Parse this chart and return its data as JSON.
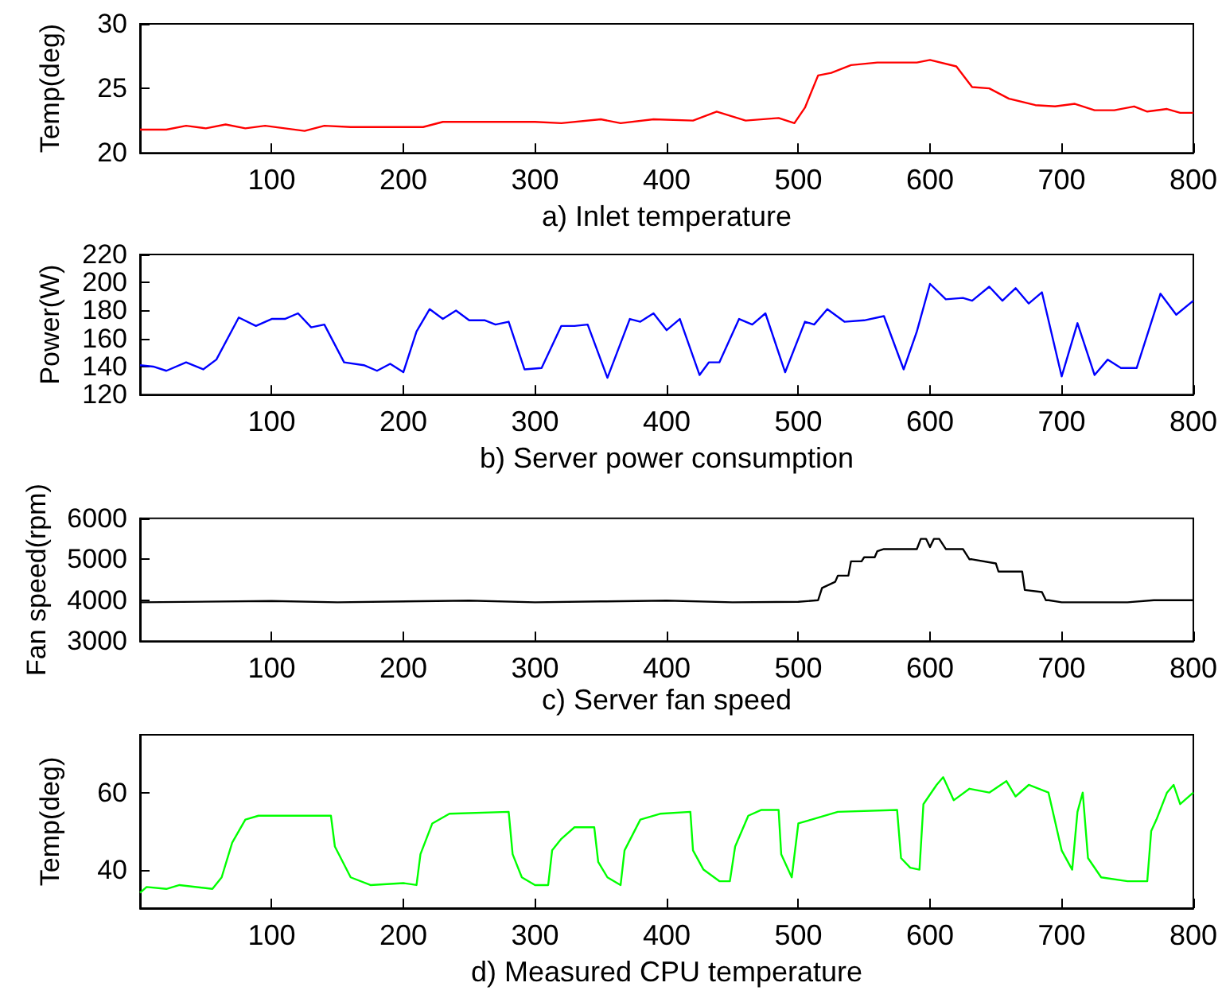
{
  "chart_data": [
    {
      "type": "line",
      "xlabel": "a) Inlet temperature",
      "ylabel": "Temp(deg)",
      "xlim": [
        0,
        800
      ],
      "xticks": [
        100,
        200,
        300,
        400,
        500,
        600,
        700,
        800
      ],
      "ylim": [
        20,
        30
      ],
      "yticks": [
        20,
        25,
        30
      ],
      "grid": false,
      "series": [
        {
          "color": "#ff0000",
          "x": [
            0,
            20,
            35,
            50,
            65,
            80,
            95,
            110,
            125,
            140,
            160,
            215,
            230,
            260,
            300,
            320,
            350,
            365,
            390,
            420,
            438,
            460,
            485,
            497,
            505,
            515,
            525,
            540,
            560,
            590,
            600,
            620,
            632,
            645,
            660,
            680,
            695,
            710,
            725,
            740,
            755,
            765,
            780,
            790,
            800
          ],
          "values": [
            21.8,
            21.8,
            22.1,
            21.9,
            22.2,
            21.9,
            22.1,
            21.9,
            21.7,
            22.1,
            22.0,
            22.0,
            22.4,
            22.4,
            22.4,
            22.3,
            22.6,
            22.3,
            22.6,
            22.5,
            23.2,
            22.5,
            22.7,
            22.3,
            23.5,
            26.0,
            26.2,
            26.8,
            27.0,
            27.0,
            27.2,
            26.7,
            25.1,
            25.0,
            24.2,
            23.7,
            23.6,
            23.8,
            23.3,
            23.3,
            23.6,
            23.2,
            23.4,
            23.1,
            23.1
          ]
        }
      ]
    },
    {
      "type": "line",
      "xlabel": "b) Server power consumption",
      "ylabel": "Power(W)",
      "xlim": [
        0,
        800
      ],
      "xticks": [
        100,
        200,
        300,
        400,
        500,
        600,
        700,
        800
      ],
      "ylim": [
        120,
        220
      ],
      "yticks": [
        120,
        140,
        160,
        180,
        200,
        220
      ],
      "grid": false,
      "series": [
        {
          "color": "#0000ff",
          "x": [
            0,
            10,
            20,
            35,
            48,
            58,
            75,
            88,
            100,
            110,
            120,
            130,
            140,
            155,
            170,
            180,
            190,
            200,
            210,
            220,
            230,
            240,
            250,
            262,
            270,
            280,
            292,
            305,
            320,
            330,
            340,
            355,
            372,
            380,
            390,
            400,
            410,
            425,
            432,
            440,
            455,
            465,
            475,
            490,
            505,
            512,
            522,
            535,
            550,
            565,
            580,
            590,
            600,
            612,
            625,
            632,
            645,
            655,
            665,
            675,
            685,
            700,
            712,
            725,
            735,
            745,
            757,
            775,
            787,
            800
          ],
          "values": [
            141,
            140,
            137,
            143,
            138,
            145,
            175,
            169,
            174,
            174,
            178,
            168,
            170,
            143,
            141,
            137,
            142,
            136,
            165,
            181,
            174,
            180,
            173,
            173,
            170,
            172,
            138,
            139,
            169,
            169,
            170,
            132,
            174,
            172,
            178,
            166,
            174,
            134,
            143,
            143,
            174,
            170,
            178,
            136,
            172,
            170,
            181,
            172,
            173,
            176,
            138,
            165,
            199,
            188,
            189,
            187,
            197,
            187,
            196,
            185,
            193,
            133,
            171,
            134,
            145,
            139,
            139,
            192,
            177,
            187
          ]
        }
      ]
    },
    {
      "type": "line",
      "xlabel": "c) Server fan speed",
      "ylabel": "Fan speed(rpm)",
      "xlim": [
        0,
        800
      ],
      "xticks": [
        100,
        200,
        300,
        400,
        500,
        600,
        700,
        800
      ],
      "ylim": [
        3000,
        6000
      ],
      "yticks": [
        3000,
        4000,
        5000,
        6000
      ],
      "grid": false,
      "series": [
        {
          "color": "#000000",
          "x": [
            0,
            100,
            150,
            250,
            300,
            350,
            400,
            450,
            500,
            515,
            518,
            528,
            530,
            538,
            540,
            548,
            550,
            558,
            560,
            565,
            590,
            593,
            597,
            600,
            603,
            607,
            612,
            625,
            630,
            632,
            650,
            652,
            670,
            672,
            685,
            688,
            690,
            700,
            750,
            770,
            800
          ],
          "values": [
            3950,
            3980,
            3950,
            3990,
            3950,
            3970,
            3990,
            3950,
            3960,
            4000,
            4300,
            4450,
            4600,
            4600,
            4950,
            4950,
            5050,
            5050,
            5200,
            5250,
            5250,
            5500,
            5500,
            5300,
            5500,
            5500,
            5250,
            5250,
            5000,
            5000,
            4900,
            4700,
            4700,
            4250,
            4200,
            4000,
            4000,
            3950,
            3950,
            4000,
            4000
          ]
        }
      ]
    },
    {
      "type": "line",
      "xlabel": "d) Measured CPU temperature",
      "ylabel": "Temp(deg)",
      "xlim": [
        0,
        800
      ],
      "xticks": [
        100,
        200,
        300,
        400,
        500,
        600,
        700,
        800
      ],
      "ylim": [
        30,
        75
      ],
      "yticks": [
        40,
        60
      ],
      "grid": false,
      "series": [
        {
          "color": "#00ff00",
          "x": [
            0,
            5,
            20,
            30,
            55,
            62,
            70,
            80,
            90,
            145,
            148,
            160,
            175,
            200,
            210,
            213,
            222,
            235,
            280,
            283,
            290,
            300,
            310,
            313,
            320,
            330,
            345,
            348,
            355,
            365,
            368,
            380,
            395,
            418,
            420,
            428,
            440,
            448,
            452,
            462,
            472,
            485,
            487,
            495,
            500,
            510,
            530,
            575,
            578,
            585,
            592,
            595,
            605,
            610,
            618,
            630,
            645,
            658,
            665,
            675,
            690,
            700,
            708,
            712,
            716,
            720,
            730,
            750,
            765,
            768,
            772,
            780,
            785,
            790,
            800
          ],
          "values": [
            34,
            35.5,
            35,
            36,
            35,
            38,
            47,
            53,
            54,
            54,
            46,
            38,
            36,
            36.5,
            36,
            44,
            52,
            54.5,
            55,
            44,
            38,
            36,
            36,
            45,
            48,
            51,
            51,
            42,
            38,
            36,
            45,
            53,
            54.5,
            55,
            45,
            40,
            37,
            37,
            46,
            54,
            55.5,
            55.5,
            44,
            38,
            52,
            53,
            55,
            55.5,
            43,
            40.5,
            40,
            57,
            62,
            64,
            58,
            61,
            60,
            63,
            59,
            62,
            60,
            45,
            40,
            55,
            60,
            43,
            38,
            37,
            37,
            50,
            53,
            60,
            62,
            57,
            60
          ]
        }
      ]
    }
  ]
}
